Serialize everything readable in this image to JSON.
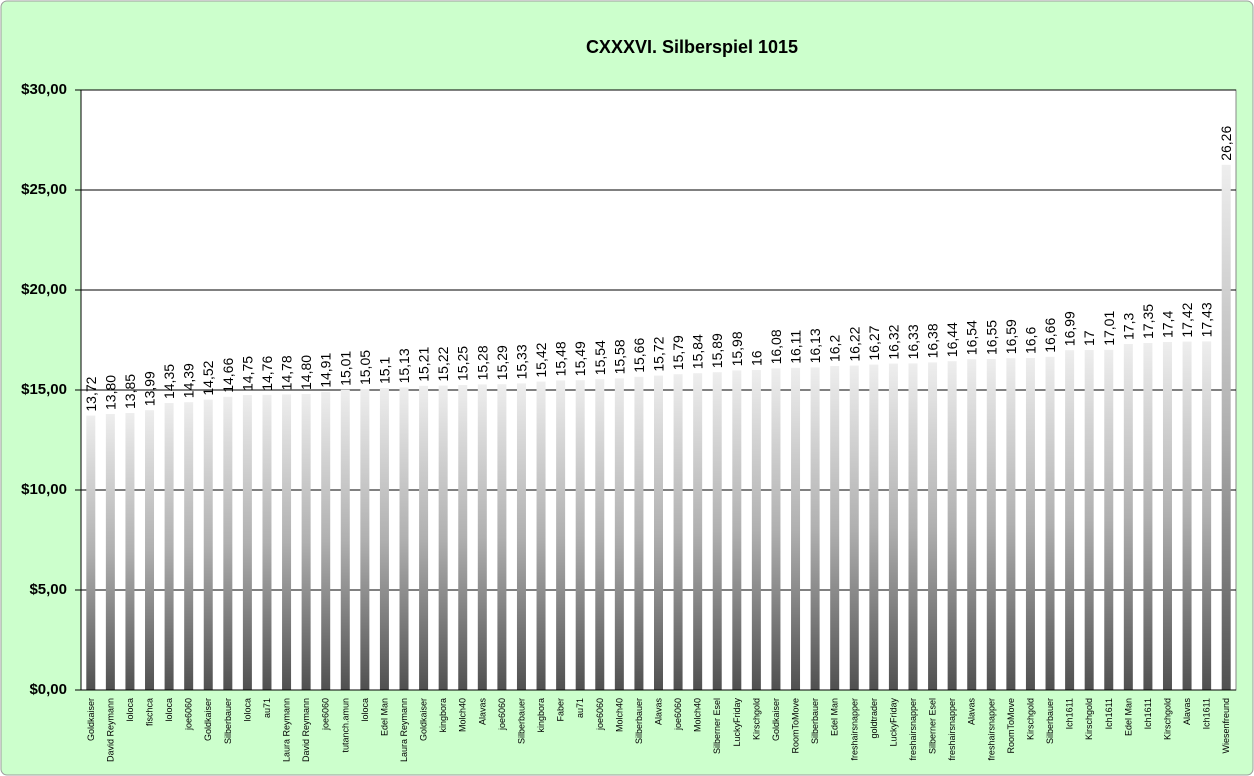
{
  "chart_data": {
    "type": "bar",
    "title": "CXXXVI. Silberspiel 1015",
    "categories": [
      "Goldkaiser",
      "David Reymann",
      "loloca",
      "fischca",
      "loloca",
      "joe6060",
      "Goldkaiser",
      "Silberbauer",
      "loloca",
      "au71",
      "Laura Reymann",
      "David Reymann",
      "joe6060",
      "tutanch.amun",
      "loloca",
      "Edel Man",
      "Laura Reymann",
      "Goldkaiser",
      "kingbora",
      "Molch40",
      "Alavas",
      "joe6060",
      "Silberbauer",
      "kingbora",
      "Faber",
      "au71",
      "joe6060",
      "Molch40",
      "Silberbauer",
      "Alavas",
      "joe6060",
      "Molch40",
      "Silberner Esel",
      "LuckyFriday",
      "Kirschgold",
      "Goldkaiser",
      "RoomToMove",
      "Silberbauer",
      "Edel Man",
      "freshairsnapper",
      "goldtrader",
      "LuckyFriday",
      "freshairsnapper",
      "Silberner Esel",
      "freshairsnapper",
      "Alavas",
      "freshairsnapper",
      "RoomToMove",
      "Kirschgold",
      "Silberbauer",
      "Ich1611",
      "Kirschgold",
      "Ich1611",
      "Edel Man",
      "Ich1611",
      "Kirschgold",
      "Alavas",
      "Ich1611",
      "Wiesenfreund"
    ],
    "values": [
      13.72,
      13.8,
      13.85,
      13.99,
      14.35,
      14.39,
      14.52,
      14.66,
      14.75,
      14.76,
      14.78,
      14.8,
      14.91,
      15.01,
      15.05,
      15.1,
      15.13,
      15.21,
      15.22,
      15.25,
      15.28,
      15.29,
      15.33,
      15.42,
      15.48,
      15.49,
      15.54,
      15.58,
      15.66,
      15.72,
      15.79,
      15.84,
      15.89,
      15.98,
      16,
      16.08,
      16.11,
      16.13,
      16.2,
      16.22,
      16.27,
      16.32,
      16.33,
      16.38,
      16.44,
      16.54,
      16.55,
      16.59,
      16.6,
      16.66,
      16.99,
      17,
      17.01,
      17.3,
      17.35,
      17.4,
      17.42,
      17.43,
      26.26
    ],
    "value_labels": [
      "13,72",
      "13,80",
      "13,85",
      "13,99",
      "14,35",
      "14,39",
      "14,52",
      "14,66",
      "14,75",
      "14,76",
      "14,78",
      "14,80",
      "14,91",
      "15,01",
      "15,05",
      "15,1",
      "15,13",
      "15,21",
      "15,22",
      "15,25",
      "15,28",
      "15,29",
      "15,33",
      "15,42",
      "15,48",
      "15,49",
      "15,54",
      "15,58",
      "15,66",
      "15,72",
      "15,79",
      "15,84",
      "15,89",
      "15,98",
      "16",
      "16,08",
      "16,11",
      "16,13",
      "16,2",
      "16,22",
      "16,27",
      "16,32",
      "16,33",
      "16,38",
      "16,44",
      "16,54",
      "16,55",
      "16,59",
      "16,6",
      "16,66",
      "16,99",
      "17",
      "17,01",
      "17,3",
      "17,35",
      "17,4",
      "17,42",
      "17,43",
      "26,26"
    ],
    "ylim": [
      0,
      30
    ],
    "yticks": [
      {
        "value": 0,
        "label": "$0,00"
      },
      {
        "value": 5,
        "label": "$5,00"
      },
      {
        "value": 10,
        "label": "$10,00"
      },
      {
        "value": 15,
        "label": "$15,00"
      },
      {
        "value": 20,
        "label": "$20,00"
      },
      {
        "value": 25,
        "label": "$25,00"
      },
      {
        "value": 30,
        "label": "$30,00"
      }
    ],
    "grid": true
  }
}
